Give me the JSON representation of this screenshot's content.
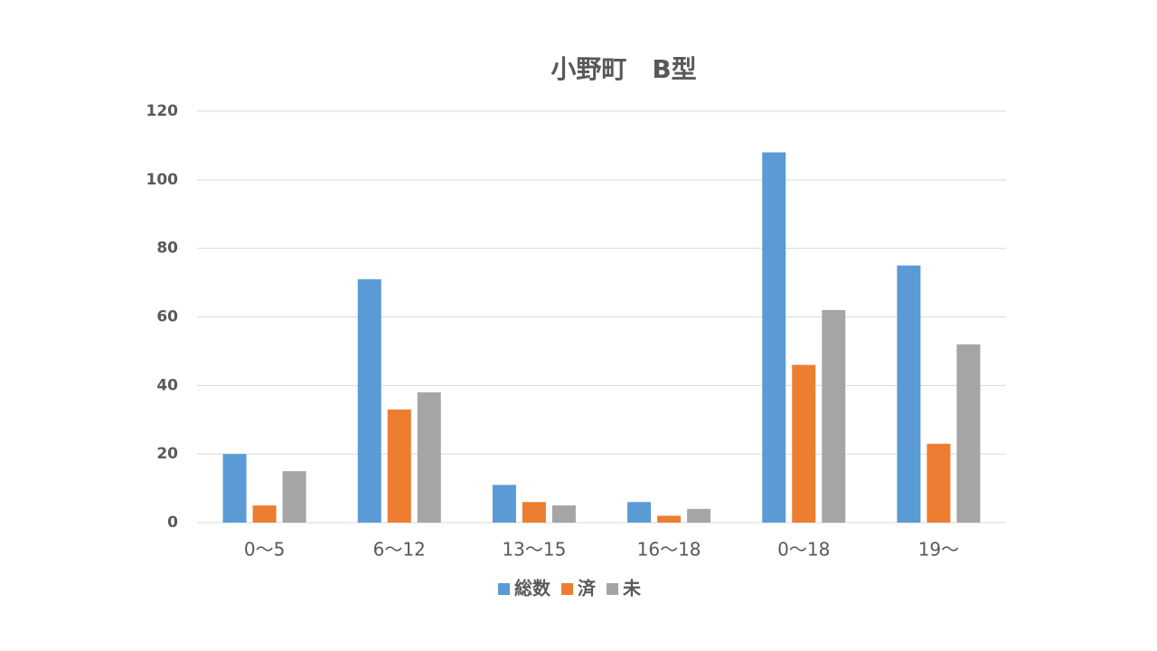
{
  "chart_data": {
    "type": "bar",
    "title": "小野町　B型",
    "categories": [
      "0～5",
      "6～12",
      "13～15",
      "16～18",
      "0～18",
      "19～"
    ],
    "series": [
      {
        "name": "総数",
        "color": "#5b9bd5",
        "values": [
          20,
          71,
          11,
          6,
          108,
          75
        ]
      },
      {
        "name": "済",
        "color": "#ed7d31",
        "values": [
          5,
          33,
          6,
          2,
          46,
          23
        ]
      },
      {
        "name": "未",
        "color": "#a5a5a5",
        "values": [
          15,
          38,
          5,
          4,
          62,
          52
        ]
      }
    ],
    "ylim": [
      0,
      120
    ],
    "yticks": [
      0,
      20,
      40,
      60,
      80,
      100,
      120
    ],
    "grid": true,
    "legend": "bottom"
  }
}
